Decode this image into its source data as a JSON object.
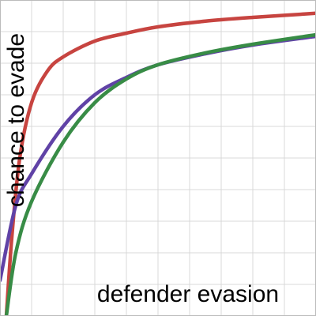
{
  "chart_data": {
    "type": "line",
    "x_label": "defender evasion",
    "y_label": "chance to evade",
    "xlim": [
      0,
      10
    ],
    "ylim": [
      0,
      10
    ],
    "xticks": [
      0,
      1,
      2,
      3,
      4,
      5,
      6,
      7,
      8,
      9,
      10
    ],
    "yticks": [
      0,
      1,
      2,
      3,
      4,
      5,
      6,
      7,
      8,
      9,
      10
    ],
    "grid": true,
    "series": [
      {
        "color": "#c74440",
        "x": [
          0.2,
          0.375,
          0.625,
          1,
          1.5,
          2,
          3,
          4,
          5,
          6.5,
          8,
          10
        ],
        "values": [
          0,
          2.5,
          5,
          6.75,
          7.75,
          8.2,
          8.7,
          8.95,
          9.15,
          9.33,
          9.45,
          9.58
        ]
      },
      {
        "color": "#6042a6",
        "x": [
          0,
          0.5,
          1,
          2,
          3,
          4,
          5,
          6.5,
          8,
          10
        ],
        "values": [
          1.125,
          3.5,
          4.5,
          6,
          7,
          7.55,
          7.95,
          8.3,
          8.575,
          8.85
        ]
      },
      {
        "color": "#388c46",
        "x": [
          0.2,
          0.5,
          1,
          2,
          3,
          4,
          5,
          6.5,
          8,
          10
        ],
        "values": [
          0,
          2,
          3.625,
          5.5,
          6.75,
          7.5,
          7.95,
          8.325,
          8.6,
          8.9
        ]
      }
    ]
  }
}
